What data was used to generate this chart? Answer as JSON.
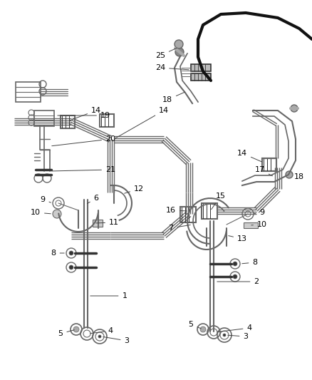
{
  "bg_color": "#ffffff",
  "line_color": "#666666",
  "dark_color": "#333333",
  "label_color": "#000000",
  "fig_width": 4.38,
  "fig_height": 5.33,
  "dpi": 100
}
